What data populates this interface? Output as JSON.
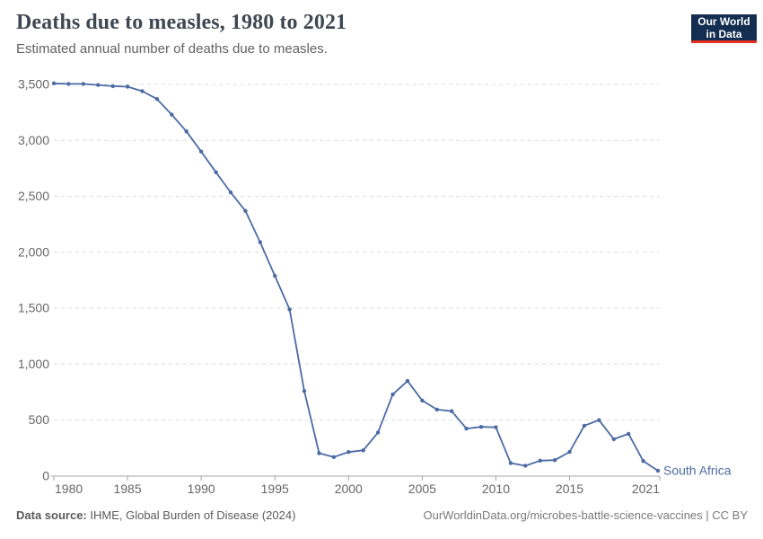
{
  "chart_data": {
    "type": "line",
    "title": "Deaths due to measles, 1980 to 2021",
    "subtitle": "Estimated annual number of deaths due to measles.",
    "xlabel": "",
    "ylabel": "",
    "xlim": [
      1980,
      2021
    ],
    "ylim": [
      0,
      3500
    ],
    "x_ticks": [
      1980,
      1985,
      1990,
      1995,
      2000,
      2005,
      2010,
      2015,
      2021
    ],
    "y_ticks": [
      0,
      500,
      1000,
      1500,
      2000,
      2500,
      3000,
      3500
    ],
    "grid": "horizontal-dashed",
    "legend_position": "end-of-line-label",
    "x": [
      1980,
      1981,
      1982,
      1983,
      1984,
      1985,
      1986,
      1987,
      1988,
      1989,
      1990,
      1991,
      1992,
      1993,
      1994,
      1995,
      1996,
      1997,
      1998,
      1999,
      2000,
      2001,
      2002,
      2003,
      2004,
      2005,
      2006,
      2007,
      2008,
      2009,
      2010,
      2011,
      2012,
      2013,
      2014,
      2015,
      2016,
      2017,
      2018,
      2019,
      2020,
      2021
    ],
    "series": [
      {
        "name": "South Africa",
        "color": "#4C6BA3",
        "values": [
          3510,
          3505,
          3505,
          3495,
          3485,
          3480,
          3440,
          3370,
          3230,
          3080,
          2900,
          2715,
          2535,
          2370,
          2090,
          1790,
          1490,
          760,
          205,
          170,
          215,
          230,
          390,
          730,
          850,
          675,
          595,
          580,
          425,
          440,
          437,
          116,
          92,
          138,
          143,
          216,
          450,
          500,
          330,
          378,
          135,
          48
        ]
      }
    ],
    "colors": {
      "grid": "#dcdcdc",
      "axis": "#a5a5a5",
      "tick_label": "#666666"
    }
  },
  "logo": {
    "line1": "Our World",
    "line2": "in Data",
    "bg_color": "#132E51",
    "accent_color": "#E63022"
  },
  "footer": {
    "source_label": "Data source:",
    "source_text": "IHME, Global Burden of Disease (2024)",
    "credit": "OurWorldinData.org/microbes-battle-science-vaccines | CC BY"
  }
}
